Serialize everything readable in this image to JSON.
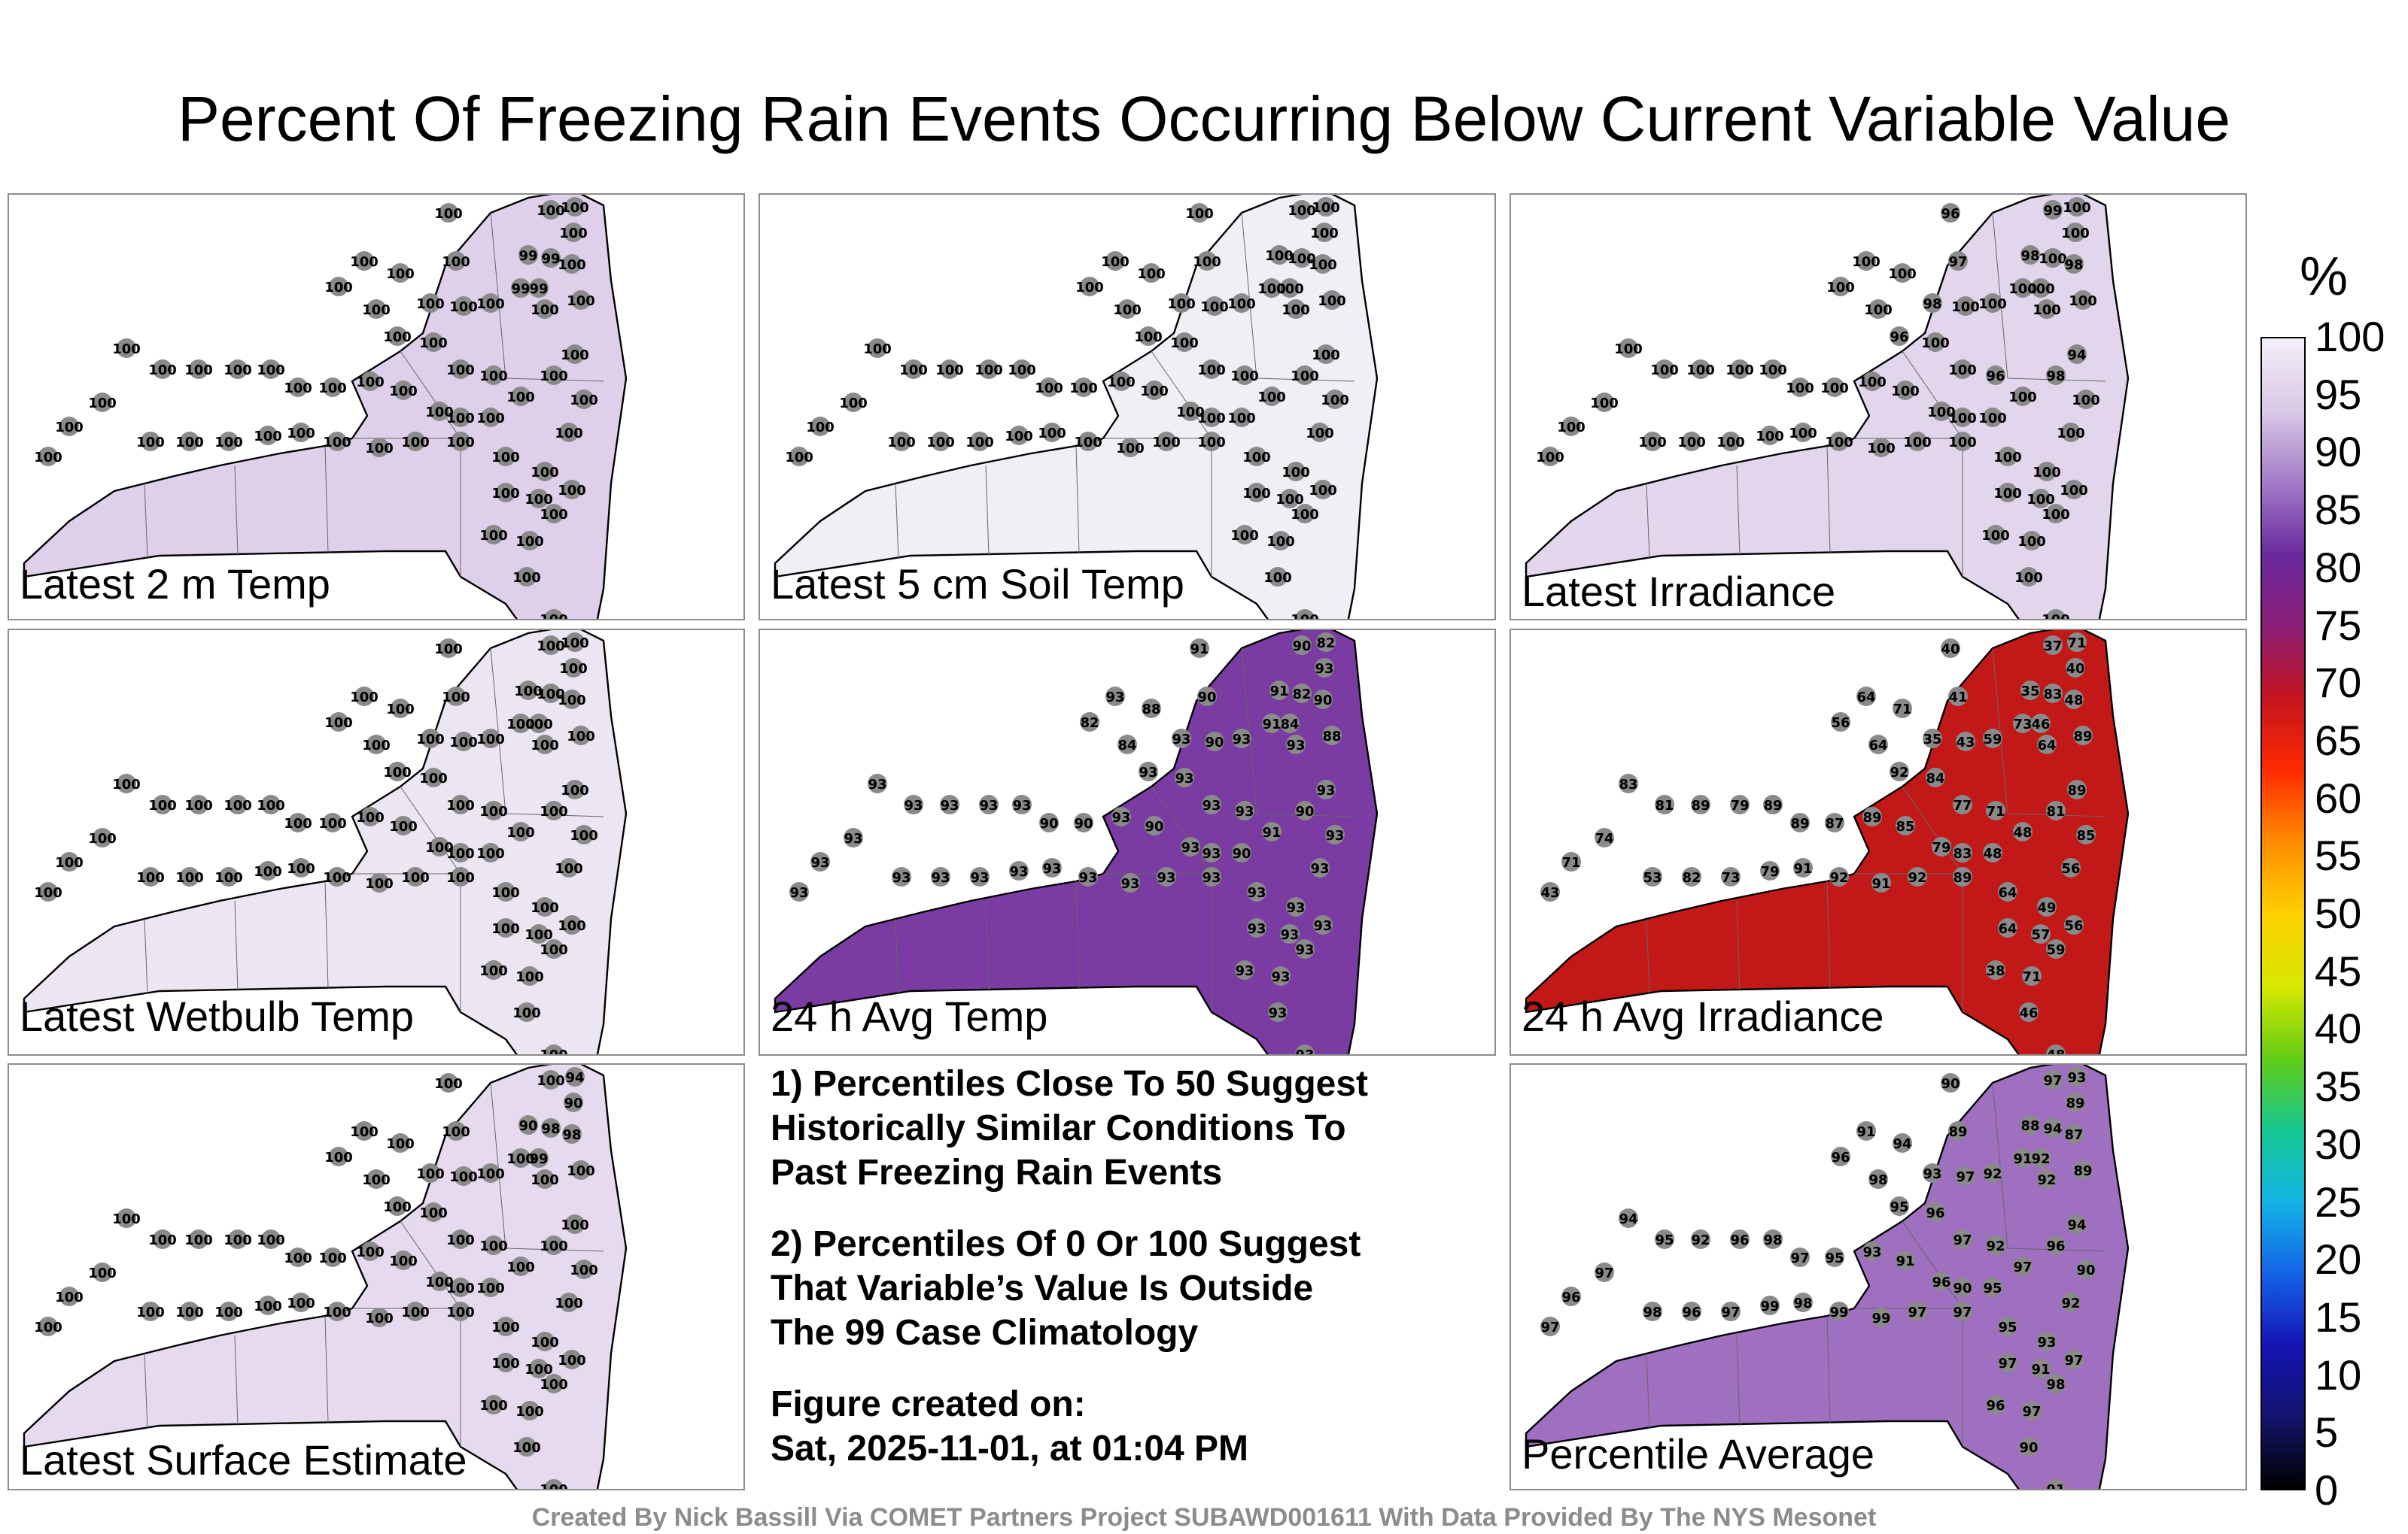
{
  "title": "Percent Of Freezing Rain Events Occurring Below Current Variable Value",
  "panels": [
    {
      "label": "Latest 2 m Temp",
      "fill": "#ded0ea",
      "values": [
        100,
        100,
        100,
        100,
        99,
        99,
        99,
        100,
        100,
        100,
        100,
        100,
        100,
        100,
        100,
        100,
        100,
        100,
        100,
        100,
        99,
        100,
        100,
        100,
        100,
        100,
        100,
        100,
        100,
        100,
        100,
        100,
        100,
        100,
        100,
        100,
        100,
        100,
        100,
        100,
        100,
        100,
        100,
        100,
        100,
        100,
        100,
        100,
        100,
        100,
        100,
        100,
        100,
        100,
        100,
        100,
        100,
        100,
        100,
        100,
        100,
        100,
        100,
        100,
        100,
        100
      ]
    },
    {
      "label": "Latest 5 cm Soil Temp",
      "fill": "#f1eef6",
      "values": [
        100,
        100,
        100,
        100,
        100,
        100,
        100,
        100,
        100,
        100,
        100,
        100,
        100,
        100,
        100,
        100,
        100,
        100,
        100,
        100,
        100,
        100,
        100,
        100,
        100,
        100,
        100,
        100,
        100,
        100,
        100,
        100,
        100,
        100,
        100,
        100,
        100,
        100,
        100,
        100,
        100,
        100,
        100,
        100,
        100,
        100,
        100,
        100,
        100,
        100,
        100,
        100,
        100,
        100,
        100,
        100,
        100,
        100,
        100,
        100,
        100,
        100,
        100,
        100,
        100,
        100
      ]
    },
    {
      "label": "Latest Irradiance",
      "fill": "#e2d6ec",
      "values": [
        96,
        97,
        99,
        100,
        98,
        100,
        100,
        100,
        98,
        100,
        100,
        100,
        100,
        100,
        98,
        100,
        100,
        96,
        100,
        100,
        100,
        100,
        94,
        100,
        98,
        96,
        100,
        100,
        100,
        100,
        100,
        100,
        100,
        100,
        100,
        100,
        100,
        100,
        100,
        100,
        100,
        100,
        100,
        100,
        100,
        100,
        100,
        100,
        100,
        100,
        100,
        100,
        100,
        100,
        100,
        100,
        100,
        100,
        100,
        100,
        100,
        100,
        100,
        100,
        100,
        100
      ]
    },
    {
      "label": "Latest Wetbulb Temp",
      "fill": "#ece6f2",
      "values": [
        100,
        100,
        100,
        100,
        100,
        100,
        100,
        100,
        100,
        100,
        100,
        100,
        100,
        100,
        100,
        100,
        100,
        100,
        100,
        100,
        100,
        100,
        100,
        100,
        100,
        100,
        100,
        100,
        100,
        100,
        100,
        100,
        100,
        100,
        100,
        100,
        100,
        100,
        100,
        100,
        100,
        100,
        100,
        100,
        100,
        100,
        100,
        100,
        100,
        100,
        100,
        100,
        100,
        100,
        100,
        100,
        100,
        100,
        100,
        100,
        100,
        100,
        100,
        100,
        100,
        100
      ]
    },
    {
      "label": "24 h Avg Temp",
      "fill": "#7a3ca2",
      "values": [
        91,
        90,
        90,
        93,
        91,
        82,
        84,
        82,
        90,
        88,
        93,
        82,
        84,
        88,
        93,
        90,
        93,
        93,
        93,
        93,
        91,
        93,
        93,
        93,
        90,
        93,
        91,
        90,
        93,
        93,
        90,
        93,
        90,
        90,
        93,
        93,
        93,
        93,
        93,
        93,
        93,
        93,
        93,
        93,
        93,
        93,
        93,
        93,
        93,
        93,
        93,
        93,
        93,
        93,
        93,
        93,
        93,
        93,
        93,
        93,
        93,
        93,
        93,
        93,
        93,
        93
      ]
    },
    {
      "label": "24 h Avg Irradiance",
      "fill": "#c21818",
      "values": [
        40,
        41,
        37,
        40,
        35,
        83,
        46,
        71,
        48,
        89,
        64,
        56,
        64,
        71,
        35,
        43,
        59,
        92,
        84,
        77,
        73,
        64,
        89,
        85,
        81,
        71,
        48,
        48,
        83,
        79,
        85,
        89,
        87,
        89,
        89,
        79,
        89,
        81,
        83,
        74,
        71,
        43,
        53,
        82,
        73,
        79,
        91,
        92,
        91,
        92,
        89,
        64,
        49,
        56,
        57,
        64,
        38,
        71,
        59,
        56,
        46,
        48,
        79,
        89,
        74,
        59
      ]
    },
    {
      "label": "Latest Surface Estimate",
      "fill": "#e6dbee",
      "values": [
        100,
        100,
        100,
        90,
        90,
        98,
        99,
        94,
        98,
        100,
        100,
        100,
        100,
        100,
        100,
        100,
        100,
        100,
        100,
        100,
        100,
        100,
        100,
        100,
        100,
        100,
        100,
        100,
        100,
        100,
        100,
        100,
        100,
        100,
        100,
        100,
        100,
        100,
        100,
        100,
        100,
        100,
        100,
        100,
        100,
        100,
        100,
        100,
        100,
        100,
        100,
        100,
        100,
        100,
        100,
        100,
        100,
        100,
        100,
        100,
        100,
        100,
        100,
        100,
        100,
        100
      ]
    },
    {
      "label": "Percentile Average",
      "fill": "#9f6fc0",
      "values": [
        90,
        89,
        97,
        89,
        88,
        94,
        92,
        93,
        87,
        89,
        91,
        96,
        98,
        94,
        93,
        97,
        92,
        95,
        96,
        97,
        91,
        92,
        94,
        90,
        96,
        92,
        97,
        95,
        90,
        96,
        91,
        93,
        95,
        97,
        98,
        96,
        92,
        95,
        94,
        97,
        96,
        97,
        98,
        96,
        97,
        99,
        98,
        99,
        99,
        97,
        97,
        95,
        93,
        92,
        91,
        97,
        96,
        97,
        98,
        97,
        90,
        91,
        92,
        94,
        95,
        96
      ]
    }
  ],
  "notes": {
    "note1": [
      "1) Percentiles Close To 50 Suggest",
      "Historically Similar Conditions To",
      "Past Freezing Rain Events"
    ],
    "note2": [
      "2) Percentiles Of 0 Or 100 Suggest",
      "That Variable’s Value Is Outside",
      "The 99 Case Climatology"
    ],
    "created_label": "Figure created on:",
    "created_date": "Sat, 2025-11-01, at 01:04 PM"
  },
  "colorbar": {
    "unit": "%",
    "ticks": [
      "100",
      "95",
      "90",
      "85",
      "80",
      "75",
      "70",
      "65",
      "60",
      "55",
      "50",
      "45",
      "40",
      "35",
      "30",
      "25",
      "20",
      "15",
      "10",
      "5",
      "0"
    ]
  },
  "footer": "Created By Nick Bassill Via COMET Partners Project SUBAWD001611 With Data Provided By The NYS Mesonet"
}
